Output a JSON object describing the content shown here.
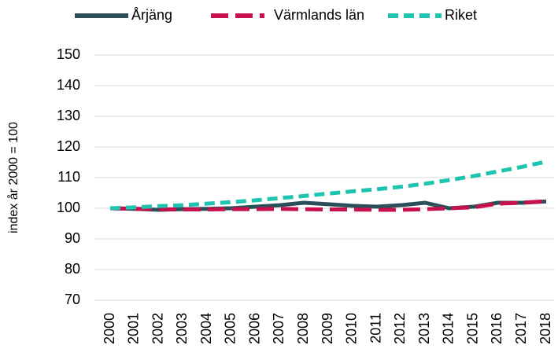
{
  "chart_data": {
    "type": "line",
    "y_label": "index år 2000 = 100",
    "categories": [
      "2000",
      "2001",
      "2002",
      "2003",
      "2004",
      "2005",
      "2006",
      "2007",
      "2008",
      "2009",
      "2010",
      "2011",
      "2012",
      "2013",
      "2014",
      "2015",
      "2016",
      "2017",
      "2018"
    ],
    "series": [
      {
        "name": "Årjäng",
        "color": "#2a4f59",
        "dash": "solid",
        "values": [
          100,
          99.8,
          99.5,
          99.7,
          99.8,
          100,
          100.5,
          101,
          101.8,
          101.3,
          100.8,
          100.5,
          101,
          101.8,
          100,
          100.5,
          101.8,
          101.8,
          102.2
        ]
      },
      {
        "name": "Värmlands län",
        "color": "#c8104d",
        "dash": "long-dash",
        "values": [
          100,
          99.8,
          99.7,
          99.6,
          99.6,
          99.7,
          99.7,
          99.8,
          99.7,
          99.6,
          99.6,
          99.5,
          99.5,
          99.7,
          100,
          100.3,
          101.5,
          101.8,
          102.3
        ]
      },
      {
        "name": "Riket",
        "color": "#1fc4b0",
        "dash": "dash",
        "values": [
          100,
          100.3,
          100.7,
          101,
          101.5,
          102,
          102.6,
          103.3,
          104,
          104.8,
          105.5,
          106.2,
          107,
          108,
          109.2,
          110.5,
          112,
          113.5,
          115.2
        ]
      }
    ],
    "ylim": [
      70,
      150
    ],
    "yticks": [
      70,
      80,
      90,
      100,
      110,
      120,
      130,
      140,
      150
    ],
    "grid": true,
    "legend": "top"
  }
}
